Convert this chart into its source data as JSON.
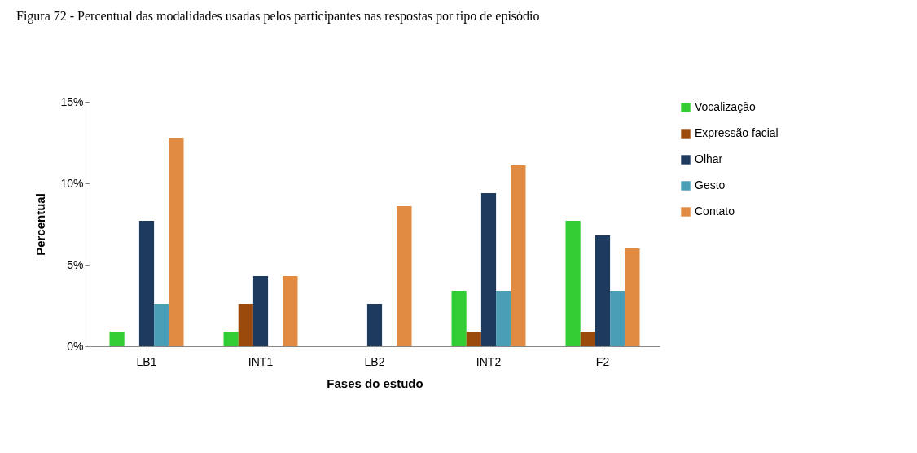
{
  "chart_data": {
    "type": "bar",
    "title": "Figura 72 - Percentual das modalidades usadas pelos participantes nas respostas por tipo de episódio",
    "xlabel": "Fases do estudo",
    "ylabel": "Percentual",
    "categories": [
      "LB1",
      "INT1",
      "LB2",
      "INT2",
      "F2"
    ],
    "series": [
      {
        "name": "Vocalização",
        "color": "#33cc33",
        "values": [
          0.9,
          0.9,
          0,
          3.4,
          7.7
        ]
      },
      {
        "name": "Expressão facial",
        "color": "#9c4a0c",
        "values": [
          0,
          2.6,
          0,
          0.9,
          0.9
        ]
      },
      {
        "name": "Olhar",
        "color": "#1f3a5f",
        "values": [
          7.7,
          4.3,
          2.6,
          9.4,
          6.8
        ]
      },
      {
        "name": "Gesto",
        "color": "#4a9fb6",
        "values": [
          2.6,
          0,
          0,
          3.4,
          3.4
        ]
      },
      {
        "name": "Contato",
        "color": "#e08a42",
        "values": [
          12.8,
          4.3,
          8.6,
          11.1,
          6.0
        ]
      }
    ],
    "ylim": [
      0,
      15
    ],
    "yticks": [
      {
        "value": 0,
        "label": "0%"
      },
      {
        "value": 5,
        "label": "5%"
      },
      {
        "value": 10,
        "label": "10%"
      },
      {
        "value": 15,
        "label": "15%"
      }
    ],
    "grid": false,
    "legend": "right"
  }
}
